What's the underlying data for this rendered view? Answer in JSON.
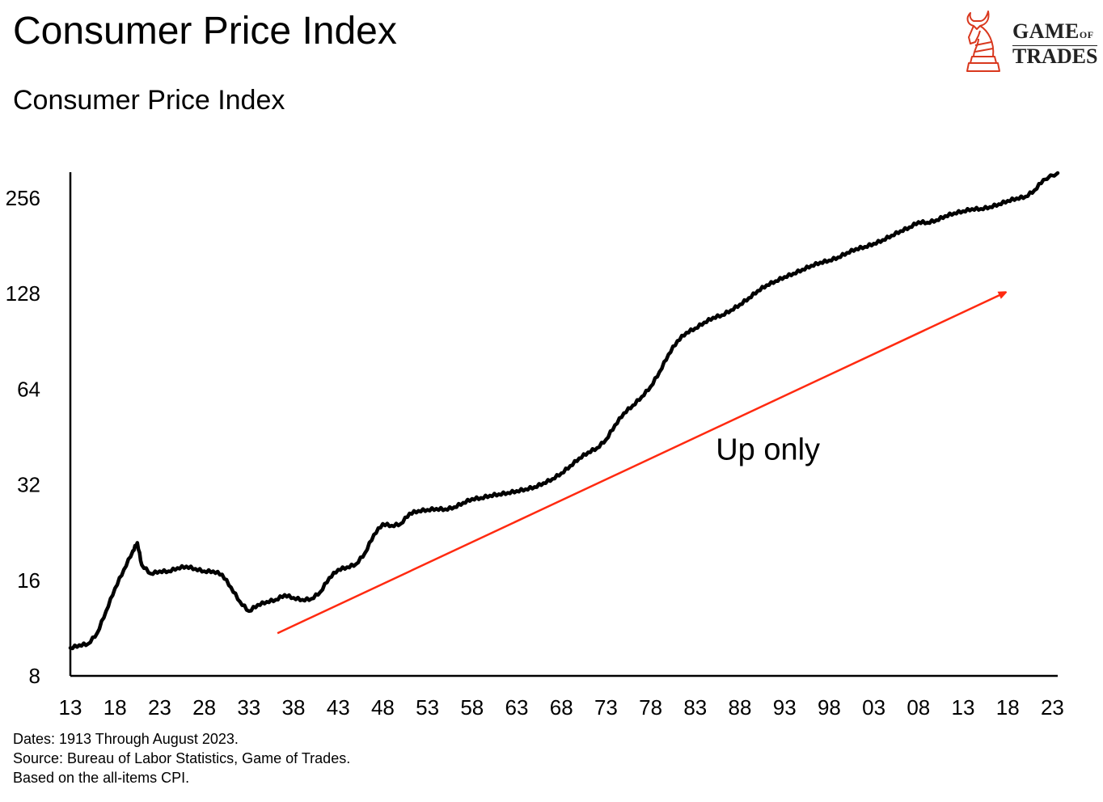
{
  "title": "Consumer Price Index",
  "subtitle": "Consumer Price Index",
  "logo": {
    "text_line1": "GAME",
    "text_of": "OF",
    "text_line2": "TRADES",
    "color": "#d9381e"
  },
  "footer": [
    "Dates: 1913 Through August 2023.",
    "Source: Bureau of Labor Statistics, Game of Trades.",
    "Based on the all-items CPI."
  ],
  "chart_data": {
    "type": "line",
    "title": "Consumer Price Index",
    "xlabel": "",
    "ylabel": "",
    "yscale": "log2",
    "xlim": [
      1913,
      2023.7
    ],
    "ylim": [
      8,
      310
    ],
    "grid": false,
    "x_ticks": [
      1913,
      1918,
      1923,
      1928,
      1933,
      1938,
      1943,
      1948,
      1953,
      1958,
      1963,
      1968,
      1973,
      1978,
      1983,
      1988,
      1993,
      1998,
      2003,
      2008,
      2013,
      2018,
      2023
    ],
    "x_tick_labels": [
      "13",
      "18",
      "23",
      "28",
      "33",
      "38",
      "43",
      "48",
      "53",
      "58",
      "63",
      "68",
      "73",
      "78",
      "83",
      "88",
      "93",
      "98",
      "03",
      "08",
      "13",
      "18",
      "23"
    ],
    "y_ticks": [
      8,
      16,
      32,
      64,
      128,
      256
    ],
    "y_tick_labels": [
      "8",
      "16",
      "32",
      "64",
      "128",
      "256"
    ],
    "series": [
      {
        "color": "#000000",
        "x": [
          1913,
          1914,
          1915,
          1916,
          1917,
          1918,
          1919,
          1920,
          1920.5,
          1921,
          1922,
          1923,
          1924,
          1925,
          1926,
          1927,
          1928,
          1929,
          1930,
          1931,
          1932,
          1933,
          1934,
          1935,
          1936,
          1937,
          1938,
          1939,
          1940,
          1941,
          1942,
          1943,
          1944,
          1945,
          1946,
          1947,
          1948,
          1949,
          1950,
          1951,
          1952,
          1953,
          1954,
          1955,
          1956,
          1957,
          1958,
          1959,
          1960,
          1961,
          1962,
          1963,
          1964,
          1965,
          1966,
          1967,
          1968,
          1969,
          1970,
          1971,
          1972,
          1973,
          1974,
          1975,
          1976,
          1977,
          1978,
          1979,
          1980,
          1981,
          1982,
          1983,
          1984,
          1985,
          1986,
          1987,
          1988,
          1989,
          1990,
          1991,
          1992,
          1993,
          1994,
          1995,
          1996,
          1997,
          1998,
          1999,
          2000,
          2001,
          2002,
          2003,
          2004,
          2005,
          2006,
          2007,
          2008,
          2009,
          2010,
          2011,
          2012,
          2013,
          2014,
          2015,
          2016,
          2017,
          2018,
          2019,
          2020,
          2021,
          2022,
          2023.6
        ],
        "y": [
          9.8,
          10.0,
          10.1,
          10.9,
          12.8,
          15.1,
          17.3,
          19.8,
          21.0,
          17.9,
          16.8,
          17.1,
          17.1,
          17.5,
          17.7,
          17.4,
          17.1,
          17.1,
          16.7,
          15.2,
          13.7,
          12.8,
          13.4,
          13.7,
          13.9,
          14.4,
          14.1,
          13.9,
          14.0,
          14.7,
          16.3,
          17.3,
          17.6,
          18.0,
          19.5,
          22.3,
          24.1,
          23.8,
          24.1,
          26.0,
          26.5,
          26.7,
          26.9,
          26.8,
          27.2,
          28.1,
          28.9,
          29.1,
          29.6,
          29.9,
          30.2,
          30.6,
          31.0,
          31.5,
          32.4,
          33.4,
          34.8,
          36.7,
          38.8,
          40.5,
          41.8,
          44.4,
          49.3,
          53.8,
          56.9,
          60.6,
          65.2,
          72.6,
          82.4,
          90.9,
          96.5,
          99.6,
          103.9,
          107.6,
          109.6,
          113.6,
          118.3,
          124.0,
          130.7,
          136.2,
          140.3,
          144.5,
          148.2,
          152.4,
          156.9,
          160.5,
          163.0,
          166.6,
          172.2,
          177.1,
          179.9,
          184.0,
          188.9,
          195.3,
          201.6,
          207.3,
          215.3,
          214.5,
          218.1,
          224.9,
          229.6,
          233.0,
          236.7,
          237.0,
          240.0,
          245.1,
          251.1,
          255.7,
          258.8,
          271.0,
          292.7,
          307.0
        ]
      }
    ],
    "annotations": [
      {
        "type": "arrow",
        "color": "#ff2a10",
        "from": [
          1936.2,
          10.9
        ],
        "to": [
          2017.7,
          129
        ]
      },
      {
        "type": "text",
        "text": "Up only",
        "at": [
          1985.3,
          41.7
        ]
      }
    ]
  }
}
